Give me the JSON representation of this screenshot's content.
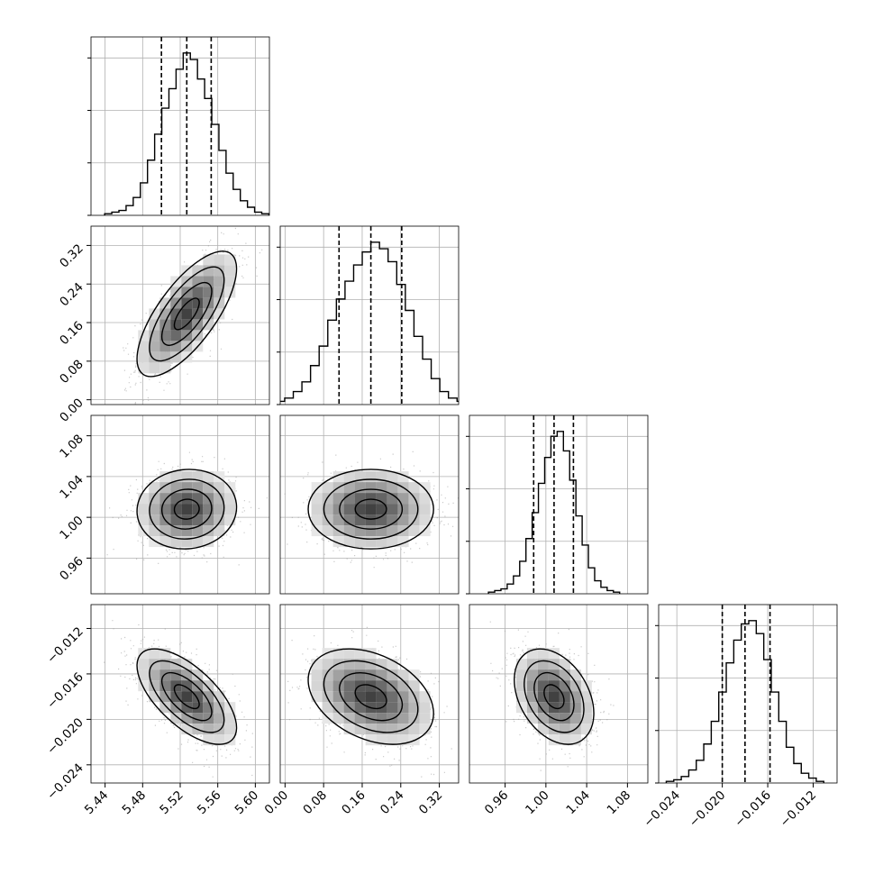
{
  "chart_data": {
    "type": "corner",
    "description_free": true,
    "params": [
      {
        "range": [
          5.425,
          5.615
        ],
        "ticks": [
          5.44,
          5.48,
          5.52,
          5.56,
          5.6
        ],
        "tick_labels": [
          "5.44",
          "5.48",
          "5.52",
          "5.56",
          "5.60"
        ],
        "quantiles": [
          5.5,
          5.527,
          5.553
        ],
        "hist": [
          1,
          2,
          3,
          6,
          11,
          20,
          34,
          50,
          66,
          78,
          90,
          100,
          96,
          84,
          72,
          56,
          40,
          26,
          16,
          9,
          5,
          2,
          1
        ]
      },
      {
        "range": [
          -0.01,
          0.36
        ],
        "ticks": [
          0.0,
          0.08,
          0.16,
          0.24,
          0.32
        ],
        "tick_labels": [
          "0.00",
          "0.08",
          "0.16",
          "0.24",
          "0.32"
        ],
        "quantiles": [
          0.112,
          0.178,
          0.242
        ],
        "hist": [
          1,
          2,
          4,
          8,
          14,
          24,
          36,
          52,
          65,
          76,
          86,
          94,
          100,
          96,
          88,
          74,
          58,
          42,
          28,
          16,
          8,
          4,
          2,
          1
        ]
      },
      {
        "range": [
          0.925,
          1.1
        ],
        "ticks": [
          0.96,
          1.0,
          1.04,
          1.08
        ],
        "tick_labels": [
          "0.96",
          "1.00",
          "1.04",
          "1.08"
        ],
        "quantiles": [
          0.988,
          1.008,
          1.027
        ],
        "hist": [
          1,
          2,
          3,
          6,
          11,
          20,
          34,
          50,
          68,
          84,
          97,
          100,
          88,
          70,
          48,
          30,
          16,
          8,
          4,
          2,
          1
        ]
      },
      {
        "range": [
          -0.0256,
          -0.0099
        ],
        "ticks": [
          -0.024,
          -0.02,
          -0.016,
          -0.012
        ],
        "tick_labels": [
          "−0.024",
          "−0.020",
          "−0.016",
          "−0.012"
        ],
        "quantiles": [
          -0.02,
          -0.018,
          -0.0158
        ],
        "hist": [
          1,
          2,
          4,
          8,
          14,
          24,
          38,
          56,
          74,
          88,
          98,
          100,
          92,
          76,
          56,
          38,
          22,
          12,
          6,
          3,
          1
        ]
      }
    ],
    "pairs": [
      {
        "x": 0,
        "y": 1,
        "mean": [
          5.527,
          0.178
        ],
        "rho": 0.72
      },
      {
        "x": 0,
        "y": 2,
        "mean": [
          5.527,
          1.008
        ],
        "rho": 0.05
      },
      {
        "x": 1,
        "y": 2,
        "mean": [
          0.178,
          1.008
        ],
        "rho": 0.0
      },
      {
        "x": 0,
        "y": 3,
        "mean": [
          5.527,
          -0.018
        ],
        "rho": -0.65
      },
      {
        "x": 1,
        "y": 3,
        "mean": [
          0.178,
          -0.018
        ],
        "rho": -0.35
      },
      {
        "x": 2,
        "y": 3,
        "mean": [
          1.008,
          -0.018
        ],
        "rho": -0.35
      }
    ],
    "contour_levels_sigma": [
      0.5,
      1.0,
      1.5,
      2.0
    ],
    "grid": true,
    "colors": {
      "line": "#000000",
      "points": "#9e9e9e",
      "grid": "#b0b0b0"
    }
  }
}
